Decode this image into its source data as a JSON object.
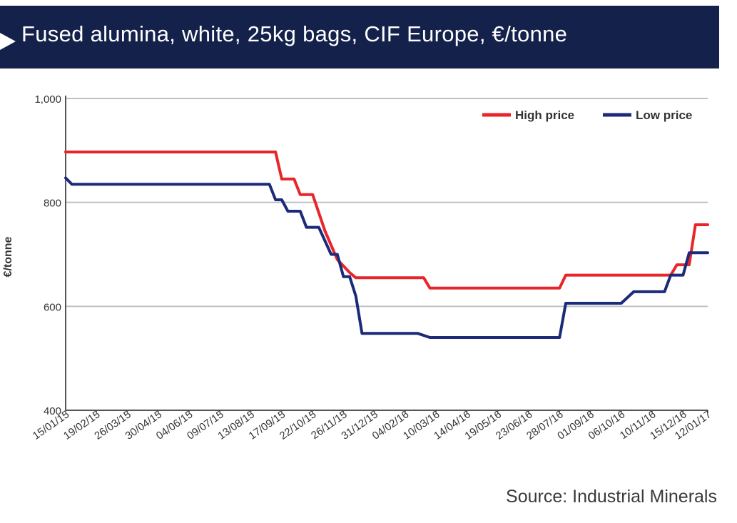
{
  "header": {
    "title": "Fused alumina, white, 25kg bags, CIF Europe, €/tonne"
  },
  "footer": {
    "source": "Source: Industrial Minerals"
  },
  "colors": {
    "banner": "#14214b",
    "high": "#e8262a",
    "low": "#1c2a7a",
    "grid": "#c0c0c0",
    "axis": "#555555"
  },
  "chart_data": {
    "type": "line",
    "ylabel": "€/tonne",
    "ylim": [
      400,
      1000
    ],
    "y_ticks": [
      {
        "value": 400,
        "label": "400"
      },
      {
        "value": 600,
        "label": "600"
      },
      {
        "value": 800,
        "label": "800"
      },
      {
        "value": 1000,
        "label": "1,000"
      }
    ],
    "x_ticks": [
      "15/01/15",
      "19/02/15",
      "26/03/15",
      "30/04/15",
      "04/06/15",
      "09/07/15",
      "13/08/15",
      "17/09/15",
      "22/10/15",
      "26/11/15",
      "31/12/15",
      "04/02/16",
      "10/03/16",
      "14/04/16",
      "19/05/16",
      "23/06/16",
      "28/07/16",
      "01/09/16",
      "06/10/16",
      "10/11/16",
      "15/12/16",
      "12/01/17"
    ],
    "grid": "horizontal",
    "legend_position": "top-right",
    "series": [
      {
        "name": "High price",
        "color": "#e8262a",
        "points": [
          [
            "15/01/15",
            897
          ],
          [
            "10/09/15",
            897
          ],
          [
            "17/09/15",
            845
          ],
          [
            "01/10/15",
            845
          ],
          [
            "08/10/15",
            815
          ],
          [
            "22/10/15",
            815
          ],
          [
            "05/11/15",
            745
          ],
          [
            "19/11/15",
            690
          ],
          [
            "03/12/15",
            665
          ],
          [
            "10/12/15",
            655
          ],
          [
            "25/02/16",
            655
          ],
          [
            "03/03/16",
            635
          ],
          [
            "28/07/16",
            635
          ],
          [
            "04/08/16",
            660
          ],
          [
            "01/12/16",
            660
          ],
          [
            "08/12/16",
            680
          ],
          [
            "22/12/16",
            680
          ],
          [
            "29/12/16",
            757
          ],
          [
            "12/01/17",
            757
          ]
        ]
      },
      {
        "name": "Low price",
        "color": "#1c2a7a",
        "points": [
          [
            "15/01/15",
            847
          ],
          [
            "22/01/15",
            835
          ],
          [
            "03/09/15",
            835
          ],
          [
            "10/09/15",
            805
          ],
          [
            "17/09/15",
            805
          ],
          [
            "24/09/15",
            783
          ],
          [
            "08/10/15",
            783
          ],
          [
            "15/10/15",
            752
          ],
          [
            "29/10/15",
            752
          ],
          [
            "12/11/15",
            700
          ],
          [
            "19/11/15",
            700
          ],
          [
            "26/11/15",
            657
          ],
          [
            "03/12/15",
            657
          ],
          [
            "10/12/15",
            620
          ],
          [
            "17/12/15",
            548
          ],
          [
            "18/02/16",
            548
          ],
          [
            "03/03/16",
            540
          ],
          [
            "28/07/16",
            540
          ],
          [
            "04/08/16",
            606
          ],
          [
            "06/10/16",
            606
          ],
          [
            "20/10/16",
            628
          ],
          [
            "24/11/16",
            628
          ],
          [
            "01/12/16",
            660
          ],
          [
            "15/12/16",
            660
          ],
          [
            "22/12/16",
            703
          ],
          [
            "12/01/17",
            703
          ]
        ]
      }
    ]
  }
}
